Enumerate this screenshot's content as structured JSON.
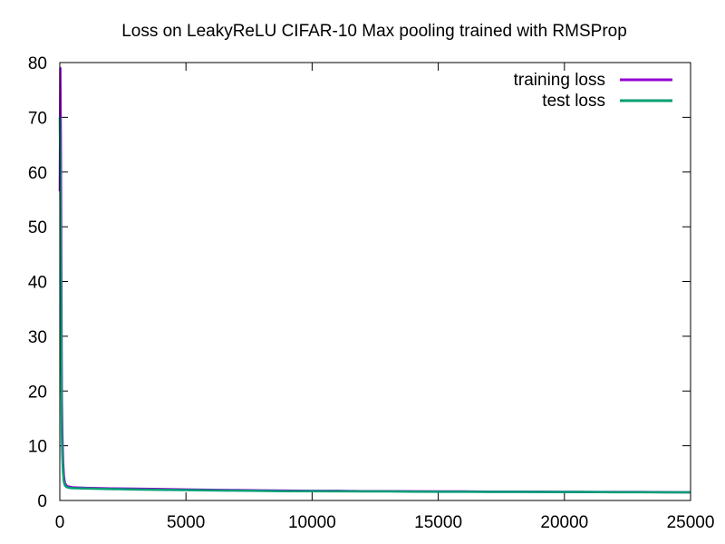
{
  "chart_data": {
    "type": "line",
    "title": "Loss on LeakyReLU CIFAR-10 Max pooling trained with RMSProp",
    "xlabel": "",
    "ylabel": "",
    "xlim": [
      0,
      25000
    ],
    "ylim": [
      0,
      80
    ],
    "x_ticks": [
      0,
      5000,
      10000,
      15000,
      20000,
      25000
    ],
    "y_ticks": [
      0,
      10,
      20,
      30,
      40,
      50,
      60,
      70,
      80
    ],
    "grid": false,
    "legend_position": "top-right",
    "series": [
      {
        "name": "training loss",
        "color": "#9400d3",
        "x": [
          0,
          20,
          40,
          60,
          80,
          100,
          130,
          160,
          200,
          250,
          300,
          400,
          500,
          700,
          1000,
          1500,
          2000,
          3000,
          4000,
          5000,
          6000,
          7000,
          8000,
          9000,
          10000,
          11000,
          12000,
          13000,
          14000,
          15000,
          16000,
          17000,
          18000,
          19000,
          20000,
          21000,
          22000,
          23000,
          24000,
          25000
        ],
        "y": [
          56.5,
          79.0,
          66.0,
          40.0,
          19.0,
          12.0,
          7.0,
          4.5,
          3.2,
          2.8,
          2.6,
          2.5,
          2.4,
          2.35,
          2.3,
          2.25,
          2.2,
          2.15,
          2.1,
          2.0,
          1.95,
          1.9,
          1.85,
          1.8,
          1.75,
          1.75,
          1.7,
          1.7,
          1.68,
          1.65,
          1.65,
          1.6,
          1.6,
          1.6,
          1.58,
          1.55,
          1.55,
          1.55,
          1.52,
          1.5
        ]
      },
      {
        "name": "test loss",
        "color": "#009e73",
        "x": [
          0,
          20,
          40,
          60,
          80,
          100,
          130,
          160,
          200,
          250,
          300,
          400,
          500,
          1000,
          2000,
          3000,
          4000,
          5000,
          6000,
          7000,
          8000,
          9000,
          10000,
          11000,
          12000,
          13000,
          14000,
          15000,
          16000,
          17000,
          18000,
          19000,
          20000,
          21000,
          22000,
          23000,
          24000,
          25000
        ],
        "y": [
          70.0,
          60.0,
          44.0,
          28.0,
          12.0,
          8.0,
          5.0,
          3.5,
          2.8,
          2.5,
          2.4,
          2.3,
          2.25,
          2.2,
          2.1,
          2.0,
          1.95,
          1.9,
          1.85,
          1.8,
          1.75,
          1.7,
          1.7,
          1.68,
          1.65,
          1.65,
          1.62,
          1.6,
          1.6,
          1.58,
          1.58,
          1.55,
          1.55,
          1.55,
          1.52,
          1.52,
          1.5,
          1.5
        ]
      }
    ]
  }
}
